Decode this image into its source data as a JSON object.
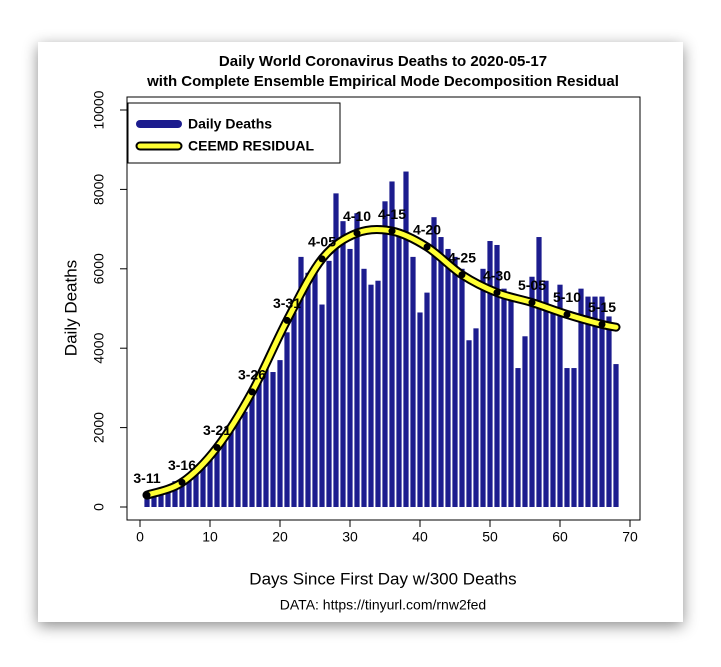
{
  "chart_data": {
    "type": "bar",
    "title": "Daily World Coronavirus Deaths to 2020-05-17",
    "subtitle": "with Complete Ensemble Empirical Mode Decomposition Residual",
    "x_label": "Days Since First Day w/300 Deaths",
    "y_label": "Daily Deaths",
    "caption": "DATA: https://tinyurl.com/rnw2fed",
    "xlim": [
      0,
      70
    ],
    "ylim": [
      0,
      10000
    ],
    "xticks": [
      0,
      10,
      20,
      30,
      40,
      50,
      60,
      70
    ],
    "yticks": [
      0,
      2000,
      4000,
      6000,
      8000,
      10000
    ],
    "series": [
      {
        "name": "Daily Deaths",
        "color": "#1c1c8e",
        "x": [
          1,
          2,
          3,
          4,
          5,
          6,
          7,
          8,
          9,
          10,
          11,
          12,
          13,
          14,
          15,
          16,
          17,
          18,
          19,
          20,
          21,
          22,
          23,
          24,
          25,
          26,
          27,
          28,
          29,
          30,
          31,
          32,
          33,
          34,
          35,
          36,
          37,
          38,
          39,
          40,
          41,
          42,
          43,
          44,
          45,
          46,
          47,
          48,
          49,
          50,
          51,
          52,
          53,
          54,
          55,
          56,
          57,
          58,
          59,
          60,
          61,
          62,
          63,
          64,
          65,
          66,
          67,
          68
        ],
        "values": [
          330,
          350,
          440,
          410,
          650,
          720,
          800,
          1000,
          1050,
          1370,
          1600,
          1700,
          1900,
          2400,
          2400,
          2800,
          3400,
          3600,
          3400,
          3700,
          4400,
          4900,
          6300,
          5900,
          6000,
          5100,
          6200,
          7900,
          7200,
          6500,
          7400,
          6000,
          5600,
          5700,
          7700,
          8200,
          7000,
          8450,
          6300,
          4900,
          5400,
          7300,
          6800,
          6500,
          6300,
          6000,
          4200,
          4500,
          6000,
          6700,
          6600,
          5500,
          5300,
          3500,
          4300,
          5800,
          6800,
          5700,
          5000,
          5600,
          3500,
          3500,
          5500,
          5300,
          5300,
          5300,
          4800,
          3600
        ]
      },
      {
        "name": "CEEMD RESIDUAL",
        "color": "#ffff33",
        "x": [
          1,
          6,
          11,
          16,
          21,
          26,
          31,
          36,
          41,
          46,
          51,
          56,
          61,
          66,
          68
        ],
        "values": [
          300,
          620,
          1500,
          2900,
          4700,
          6250,
          6900,
          6950,
          6550,
          5850,
          5400,
          5150,
          4850,
          4600,
          4530
        ],
        "point_labels": [
          "3-11",
          "3-16",
          "3-21",
          "3-26",
          "3-31",
          "4-05",
          "4-10",
          "4-15",
          "4-20",
          "4-25",
          "4-30",
          "5-05",
          "5-10",
          "5-15",
          null
        ]
      }
    ],
    "legend": "top-left"
  }
}
